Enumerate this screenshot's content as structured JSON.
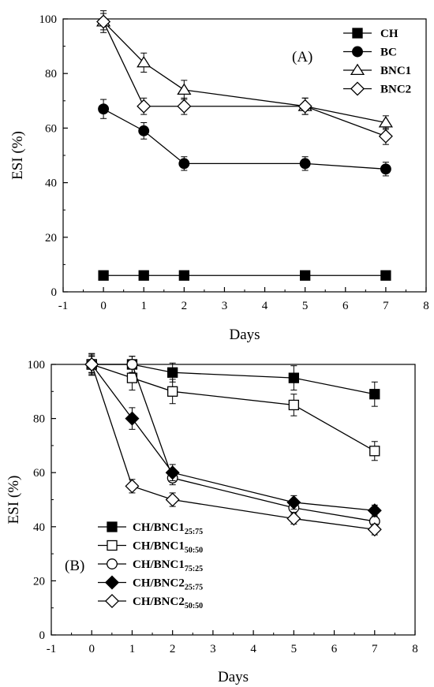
{
  "colors": {
    "ink": "#000000",
    "paper": "#ffffff"
  },
  "chart_data": [
    {
      "type": "line",
      "panel_label": "(A)",
      "xlabel": "Days",
      "ylabel": "ESI (%)",
      "xlim": [
        -1,
        8
      ],
      "ylim": [
        0,
        100
      ],
      "xticks": [
        "-1",
        "0",
        "1",
        "2",
        "3",
        "4",
        "5",
        "6",
        "7",
        "8"
      ],
      "yticks": [
        "0",
        "20",
        "40",
        "60",
        "80",
        "100"
      ],
      "grid": false,
      "legend_position": "top-right",
      "series": [
        {
          "name": "CH",
          "marker": "square-filled",
          "points": [
            [
              0,
              6
            ],
            [
              1,
              6
            ],
            [
              2,
              6
            ],
            [
              5,
              6
            ],
            [
              7,
              6
            ]
          ],
          "errors": [
            0,
            0,
            0,
            0,
            0
          ]
        },
        {
          "name": "BC",
          "marker": "circle-filled",
          "points": [
            [
              0,
              67
            ],
            [
              1,
              59
            ],
            [
              2,
              47
            ],
            [
              5,
              47
            ],
            [
              7,
              45
            ]
          ],
          "errors": [
            3.5,
            3,
            2.5,
            2.5,
            2.5
          ]
        },
        {
          "name": "BNC1",
          "marker": "triangle-open",
          "points": [
            [
              0,
              99
            ],
            [
              1,
              84
            ],
            [
              2,
              74
            ],
            [
              5,
              68
            ],
            [
              7,
              62
            ]
          ],
          "errors": [
            4,
            3.5,
            3.5,
            3,
            2.5
          ]
        },
        {
          "name": "BNC2",
          "marker": "diamond-open",
          "points": [
            [
              0,
              99
            ],
            [
              1,
              68
            ],
            [
              2,
              68
            ],
            [
              5,
              68
            ],
            [
              7,
              57
            ]
          ],
          "errors": [
            3,
            3,
            3,
            3,
            3
          ]
        }
      ]
    },
    {
      "type": "line",
      "panel_label": "(B)",
      "xlabel": "Days",
      "ylabel": "ESI (%)",
      "xlim": [
        -1,
        8
      ],
      "ylim": [
        0,
        100
      ],
      "xticks": [
        "-1",
        "0",
        "1",
        "2",
        "3",
        "4",
        "5",
        "6",
        "7",
        "8"
      ],
      "yticks": [
        "0",
        "20",
        "40",
        "60",
        "80",
        "100"
      ],
      "grid": false,
      "legend_position": "bottom-left",
      "series": [
        {
          "name": "CH/BNC1",
          "subscript": "25:75",
          "marker": "square-filled",
          "points": [
            [
              0,
              100
            ],
            [
              1,
              100
            ],
            [
              2,
              97
            ],
            [
              5,
              95
            ],
            [
              7,
              89
            ]
          ],
          "errors": [
            4,
            3,
            3.5,
            4.5,
            4.5
          ]
        },
        {
          "name": "CH/BNC1",
          "subscript": "50:50",
          "marker": "square-open",
          "points": [
            [
              0,
              100
            ],
            [
              1,
              95
            ],
            [
              2,
              90
            ],
            [
              5,
              85
            ],
            [
              7,
              68
            ]
          ],
          "errors": [
            4,
            4.5,
            4.5,
            4,
            3.5
          ]
        },
        {
          "name": "CH/BNC1",
          "subscript": "75:25",
          "marker": "circle-open",
          "points": [
            [
              0,
              100
            ],
            [
              1,
              100
            ],
            [
              2,
              58
            ],
            [
              5,
              47
            ],
            [
              7,
              42
            ]
          ],
          "errors": [
            3,
            3,
            2.5,
            2.5,
            2
          ]
        },
        {
          "name": "CH/BNC2",
          "subscript": "25:75",
          "marker": "diamond-filled",
          "points": [
            [
              0,
              100
            ],
            [
              1,
              80
            ],
            [
              2,
              60
            ],
            [
              5,
              49
            ],
            [
              7,
              46
            ]
          ],
          "errors": [
            3.5,
            4,
            3,
            2.5,
            2
          ]
        },
        {
          "name": "CH/BNC2",
          "subscript": "50:50",
          "marker": "diamond-open",
          "points": [
            [
              0,
              100
            ],
            [
              1,
              55
            ],
            [
              2,
              50
            ],
            [
              5,
              43
            ],
            [
              7,
              39
            ]
          ],
          "errors": [
            3,
            2.5,
            2.5,
            2,
            2
          ]
        }
      ]
    }
  ]
}
